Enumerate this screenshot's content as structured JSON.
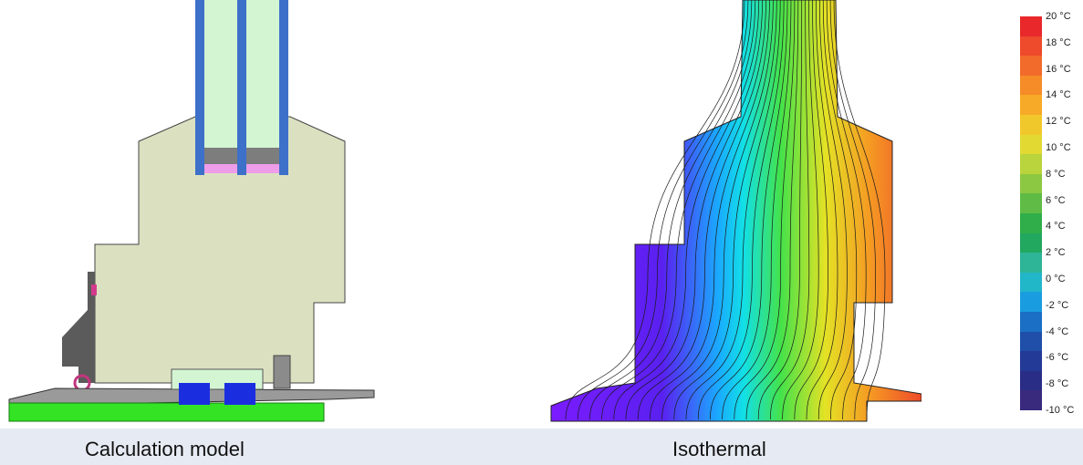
{
  "captions": {
    "model": "Calculation model",
    "isothermal": "Isothermal"
  },
  "legend": {
    "unit": "°C",
    "labels": [
      "20 °C",
      "18 °C",
      "16 °C",
      "14 °C",
      "12 °C",
      "10 °C",
      "8 °C",
      "6 °C",
      "4 °C",
      "2 °C",
      "0 °C",
      "-2 °C",
      "-4 °C",
      "-6 °C",
      "-8 °C",
      "-10 °C"
    ],
    "colors": [
      "#e8282b",
      "#ee4a2c",
      "#f26b2a",
      "#f58c28",
      "#f7aa27",
      "#f1c82b",
      "#e2d933",
      "#b9d43c",
      "#8cc841",
      "#5fbb45",
      "#2fae4a",
      "#22a85f",
      "#2eb497",
      "#22b6c9",
      "#1a9de0",
      "#1b6fc4",
      "#1f4fa8",
      "#233a96",
      "#2a2d85",
      "#3a2a7e"
    ]
  },
  "model_colors": {
    "insulation": "#dbe1c0",
    "glass": "#d4f5d2",
    "frame_blue": "#3d70c9",
    "spacer_gray": "#7d7d7d",
    "spacer_pink": "#ee9de9",
    "steel": "#5b5b5b",
    "base_green": "#33e324",
    "gasket_blue": "#1a2ee0"
  }
}
